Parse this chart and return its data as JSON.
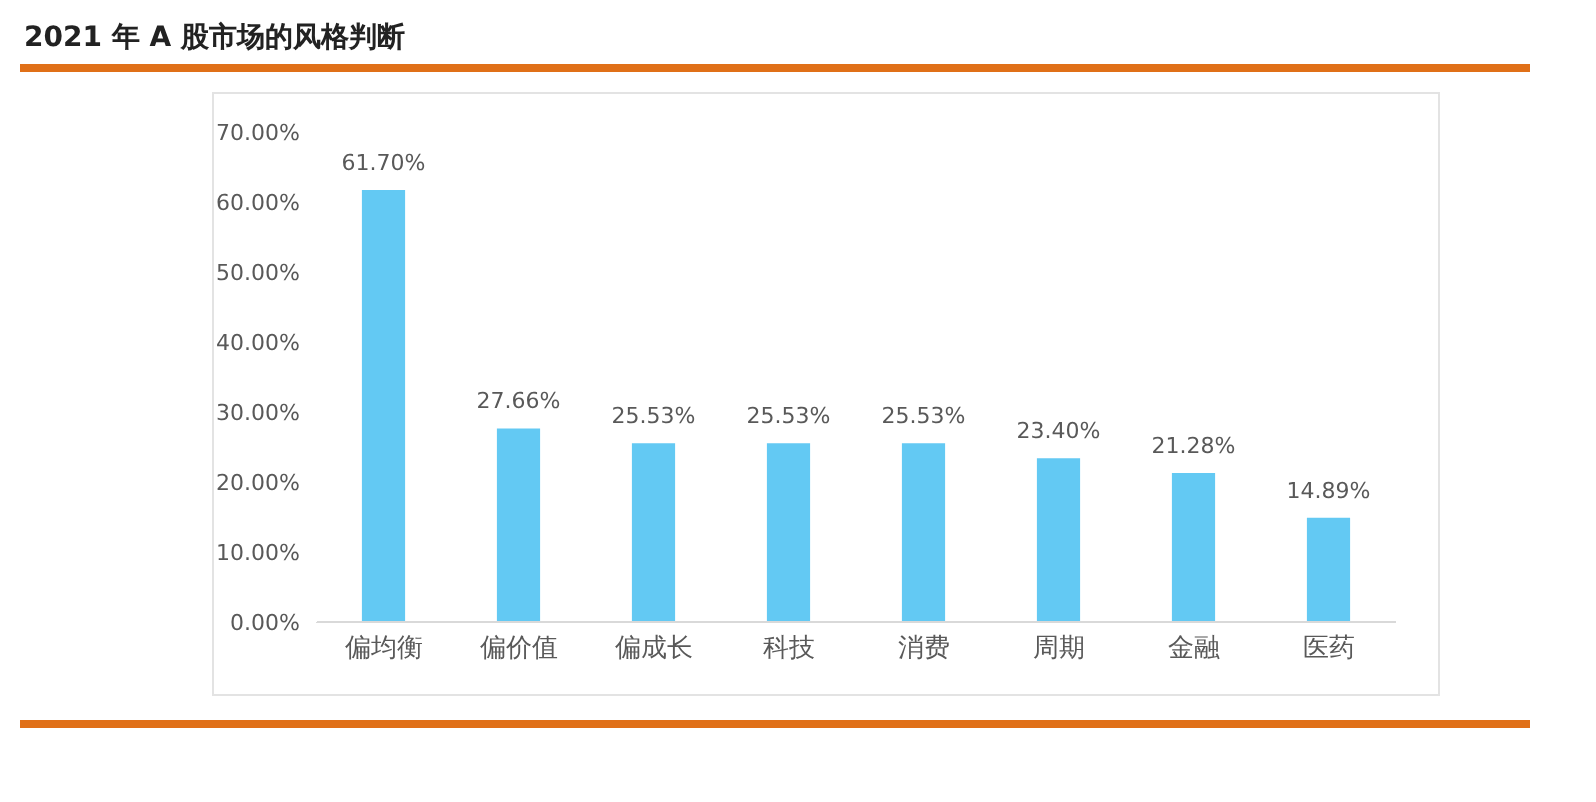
{
  "chart_data": {
    "type": "bar",
    "title": "2021 年 A 股市场的风格判断",
    "categories": [
      "偏均衡",
      "偏价值",
      "偏成长",
      "科技",
      "消费",
      "周期",
      "金融",
      "医药"
    ],
    "values": [
      61.7,
      27.66,
      25.53,
      25.53,
      25.53,
      23.4,
      21.28,
      14.89
    ],
    "value_labels": [
      "61.70%",
      "27.66%",
      "25.53%",
      "25.53%",
      "25.53%",
      "23.40%",
      "21.28%",
      "14.89%"
    ],
    "color": "#63c9f3",
    "ylim": [
      0,
      70
    ],
    "yticks": [
      {
        "value": 0,
        "label": "0.00%"
      },
      {
        "value": 10,
        "label": "10.00%"
      },
      {
        "value": 20,
        "label": "20.00%"
      },
      {
        "value": 30,
        "label": "30.00%"
      },
      {
        "value": 40,
        "label": "40.00%"
      },
      {
        "value": 50,
        "label": "50.00%"
      },
      {
        "value": 60,
        "label": "60.00%"
      },
      {
        "value": 70,
        "label": "70.00%"
      }
    ],
    "grid": false
  }
}
